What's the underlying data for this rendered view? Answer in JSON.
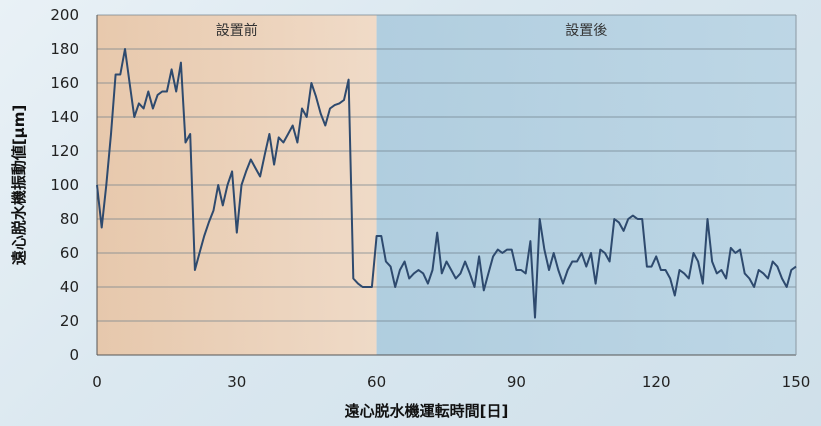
{
  "chart_data": {
    "type": "line",
    "title": "",
    "xlabel": "遠心脱水機運転時間[日]",
    "ylabel": "遠心脱水機振動値[μm]",
    "xlim": [
      0,
      150
    ],
    "ylim": [
      0,
      200
    ],
    "xticks": [
      0,
      30,
      60,
      90,
      120,
      150
    ],
    "yticks": [
      0,
      20,
      40,
      60,
      80,
      100,
      120,
      140,
      160,
      180,
      200
    ],
    "grid": "horizontal",
    "legend": "none",
    "regions": [
      {
        "label": "設置前",
        "x_start": 0,
        "x_end": 60,
        "color": "#f1c9a6"
      },
      {
        "label": "設置後",
        "x_start": 60,
        "x_end": 150,
        "color": "#a8c8dc"
      }
    ],
    "line_color": "#2e4a6e",
    "series": [
      {
        "values": [
          [
            0,
            100
          ],
          [
            1,
            75
          ],
          [
            2,
            100
          ],
          [
            3,
            130
          ],
          [
            4,
            165
          ],
          [
            5,
            165
          ],
          [
            6,
            180
          ],
          [
            7,
            160
          ],
          [
            8,
            140
          ],
          [
            9,
            148
          ],
          [
            10,
            145
          ],
          [
            11,
            155
          ],
          [
            12,
            145
          ],
          [
            13,
            153
          ],
          [
            14,
            155
          ],
          [
            15,
            155
          ],
          [
            16,
            168
          ],
          [
            17,
            155
          ],
          [
            18,
            172
          ],
          [
            19,
            125
          ],
          [
            20,
            130
          ],
          [
            21,
            50
          ],
          [
            22,
            60
          ],
          [
            23,
            70
          ],
          [
            24,
            78
          ],
          [
            25,
            85
          ],
          [
            26,
            100
          ],
          [
            27,
            88
          ],
          [
            28,
            100
          ],
          [
            29,
            108
          ],
          [
            30,
            72
          ],
          [
            31,
            100
          ],
          [
            32,
            108
          ],
          [
            33,
            115
          ],
          [
            34,
            110
          ],
          [
            35,
            105
          ],
          [
            36,
            118
          ],
          [
            37,
            130
          ],
          [
            38,
            112
          ],
          [
            39,
            128
          ],
          [
            40,
            125
          ],
          [
            41,
            130
          ],
          [
            42,
            135
          ],
          [
            43,
            125
          ],
          [
            44,
            145
          ],
          [
            45,
            140
          ],
          [
            46,
            160
          ],
          [
            47,
            152
          ],
          [
            48,
            142
          ],
          [
            49,
            135
          ],
          [
            50,
            145
          ],
          [
            51,
            147
          ],
          [
            52,
            148
          ],
          [
            53,
            150
          ],
          [
            54,
            162
          ],
          [
            55,
            45
          ],
          [
            56,
            42
          ],
          [
            57,
            40
          ],
          [
            58,
            40
          ],
          [
            59,
            40
          ],
          [
            60,
            70
          ],
          [
            61,
            70
          ],
          [
            62,
            55
          ],
          [
            63,
            52
          ],
          [
            64,
            40
          ],
          [
            65,
            50
          ],
          [
            66,
            55
          ],
          [
            67,
            45
          ],
          [
            68,
            48
          ],
          [
            69,
            50
          ],
          [
            70,
            48
          ],
          [
            71,
            42
          ],
          [
            72,
            50
          ],
          [
            73,
            72
          ],
          [
            74,
            48
          ],
          [
            75,
            55
          ],
          [
            76,
            50
          ],
          [
            77,
            45
          ],
          [
            78,
            48
          ],
          [
            79,
            55
          ],
          [
            80,
            48
          ],
          [
            81,
            40
          ],
          [
            82,
            58
          ],
          [
            83,
            38
          ],
          [
            84,
            48
          ],
          [
            85,
            58
          ],
          [
            86,
            62
          ],
          [
            87,
            60
          ],
          [
            88,
            62
          ],
          [
            89,
            62
          ],
          [
            90,
            50
          ],
          [
            91,
            50
          ],
          [
            92,
            48
          ],
          [
            93,
            67
          ],
          [
            94,
            22
          ],
          [
            95,
            80
          ],
          [
            96,
            62
          ],
          [
            97,
            50
          ],
          [
            98,
            60
          ],
          [
            99,
            50
          ],
          [
            100,
            42
          ],
          [
            101,
            50
          ],
          [
            102,
            55
          ],
          [
            103,
            55
          ],
          [
            104,
            60
          ],
          [
            105,
            52
          ],
          [
            106,
            60
          ],
          [
            107,
            42
          ],
          [
            108,
            62
          ],
          [
            109,
            60
          ],
          [
            110,
            55
          ],
          [
            111,
            80
          ],
          [
            112,
            78
          ],
          [
            113,
            73
          ],
          [
            114,
            80
          ],
          [
            115,
            82
          ],
          [
            116,
            80
          ],
          [
            117,
            80
          ],
          [
            118,
            52
          ],
          [
            119,
            52
          ],
          [
            120,
            58
          ],
          [
            121,
            50
          ],
          [
            122,
            50
          ],
          [
            123,
            45
          ],
          [
            124,
            35
          ],
          [
            125,
            50
          ],
          [
            126,
            48
          ],
          [
            127,
            45
          ],
          [
            128,
            60
          ],
          [
            129,
            55
          ],
          [
            130,
            42
          ],
          [
            131,
            80
          ],
          [
            132,
            55
          ],
          [
            133,
            48
          ],
          [
            134,
            50
          ],
          [
            135,
            45
          ],
          [
            136,
            63
          ],
          [
            137,
            60
          ],
          [
            138,
            62
          ],
          [
            139,
            48
          ],
          [
            140,
            45
          ],
          [
            141,
            40
          ],
          [
            142,
            50
          ],
          [
            143,
            48
          ],
          [
            144,
            45
          ],
          [
            145,
            55
          ],
          [
            146,
            52
          ],
          [
            147,
            45
          ],
          [
            148,
            40
          ],
          [
            149,
            50
          ],
          [
            150,
            52
          ]
        ]
      }
    ]
  }
}
